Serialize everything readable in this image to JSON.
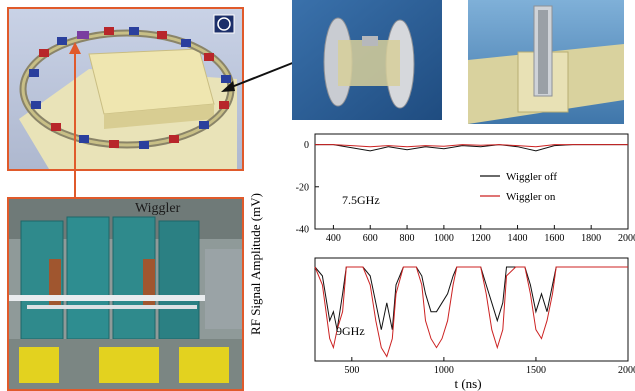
{
  "photo": {
    "label": "Wiggler"
  },
  "figure": {
    "ylabel": "RF Signal Amplitude (mV)",
    "xlabel": "t (ns)"
  },
  "colors": {
    "wiggler_off": "#111111",
    "wiggler_on": "#cc2222",
    "frame": "#e05a2b"
  },
  "chart_data": [
    {
      "type": "line",
      "annotation": "7.5GHz",
      "xlim": [
        300,
        2000
      ],
      "ylim": [
        -40,
        5
      ],
      "xticks": [
        400,
        600,
        800,
        1000,
        1200,
        1400,
        1600,
        1800,
        2000
      ],
      "yticks": [
        0,
        -20,
        -40
      ],
      "legend": "right",
      "series": [
        {
          "name": "Wiggler off",
          "color": "#111111",
          "x": [
            300,
            400,
            500,
            600,
            700,
            800,
            900,
            1000,
            1100,
            1200,
            1300,
            1400,
            1500,
            1600,
            1700,
            1800,
            1900,
            2000
          ],
          "y": [
            0,
            0,
            -1.5,
            -3,
            -1,
            -2.5,
            -1,
            -2,
            -0.5,
            -1,
            0,
            -1,
            -3,
            -0.5,
            0,
            0,
            0,
            0
          ]
        },
        {
          "name": "Wiggler on",
          "color": "#cc2222",
          "x": [
            300,
            400,
            500,
            600,
            700,
            800,
            900,
            1000,
            1100,
            1200,
            1300,
            1400,
            1500,
            1600,
            1700,
            1800,
            1900,
            2000
          ],
          "y": [
            0,
            0,
            -0.5,
            -1,
            -0.5,
            -1,
            -0.5,
            -0.8,
            0,
            -0.3,
            0,
            -0.5,
            -1,
            0,
            0,
            0,
            0,
            0
          ]
        }
      ]
    },
    {
      "type": "line",
      "annotation": "9GHz",
      "xlim": [
        300,
        2000
      ],
      "xticks": [
        500,
        1000,
        1500,
        2000
      ],
      "legend": "none",
      "series": [
        {
          "name": "Wiggler off",
          "color": "#111111",
          "x": [
            300,
            340,
            380,
            400,
            420,
            450,
            470,
            520,
            560,
            600,
            630,
            660,
            690,
            720,
            740,
            780,
            800,
            850,
            880,
            900,
            930,
            960,
            990,
            1020,
            1050,
            1070,
            1120,
            1160,
            1200,
            1230,
            1260,
            1290,
            1320,
            1340,
            1390,
            1440,
            1470,
            1500,
            1530,
            1560,
            1590,
            1610,
            1650,
            1700,
            1800,
            1900,
            2000
          ],
          "y": [
            0,
            -1,
            -6,
            -5,
            -7,
            -3,
            0,
            0,
            0,
            -1,
            -4,
            -7,
            -4,
            -7,
            -2,
            0,
            0,
            0,
            -1,
            -3,
            -5,
            -5,
            -4,
            -3,
            -1,
            0,
            0,
            0,
            0,
            -2,
            -4,
            -6,
            -4,
            0,
            0,
            0,
            -2,
            -5,
            -3,
            -5,
            -2,
            0,
            0,
            0,
            0,
            0,
            0
          ]
        },
        {
          "name": "Wiggler on",
          "color": "#cc2222",
          "x": [
            300,
            340,
            380,
            400,
            420,
            450,
            470,
            520,
            560,
            600,
            630,
            660,
            690,
            720,
            740,
            780,
            800,
            850,
            880,
            900,
            930,
            960,
            990,
            1020,
            1050,
            1070,
            1120,
            1160,
            1200,
            1230,
            1260,
            1290,
            1320,
            1340,
            1390,
            1440,
            1470,
            1500,
            1530,
            1560,
            1590,
            1610,
            1650,
            1700,
            1800,
            1900,
            2000
          ],
          "y": [
            0,
            -2,
            -8,
            -9,
            -7,
            -5,
            0,
            0,
            0,
            -2,
            -6,
            -9,
            -10,
            -8,
            -3,
            0,
            0,
            0,
            -2,
            -6,
            -8,
            -9,
            -8,
            -6,
            -2,
            0,
            0,
            0,
            0,
            -3,
            -7,
            -9,
            -7,
            -1,
            0,
            0,
            -3,
            -7,
            -8,
            -6,
            -3,
            0,
            0,
            0,
            0,
            0,
            0
          ]
        }
      ]
    }
  ]
}
